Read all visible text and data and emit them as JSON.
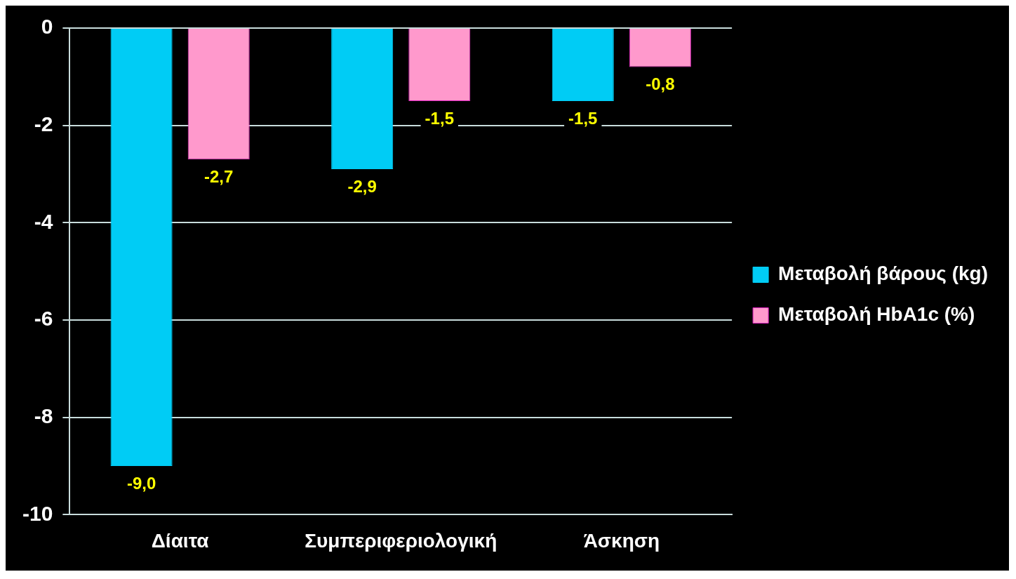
{
  "chart_data": {
    "type": "bar",
    "categories": [
      "Δίαιτα",
      "Συμπεριφεριολογική",
      "Άσκηση"
    ],
    "series": [
      {
        "name": "Μεταβολή βάρους (kg)",
        "color": "#00ccf5",
        "values": [
          -9.0,
          -2.9,
          -1.5
        ],
        "value_labels": [
          "-9,0",
          "-2,9",
          "-1,5"
        ]
      },
      {
        "name": "Μεταβολή HbA1c (%)",
        "color": "#ff99cc",
        "values": [
          -2.7,
          -1.5,
          -0.8
        ],
        "value_labels": [
          "-2,7",
          "-1,5",
          "-0,8"
        ]
      }
    ],
    "ylim": [
      -10,
      0
    ],
    "yticks": [
      0,
      -2,
      -4,
      -6,
      -8,
      -10
    ],
    "grid": "y",
    "legend": "right"
  }
}
